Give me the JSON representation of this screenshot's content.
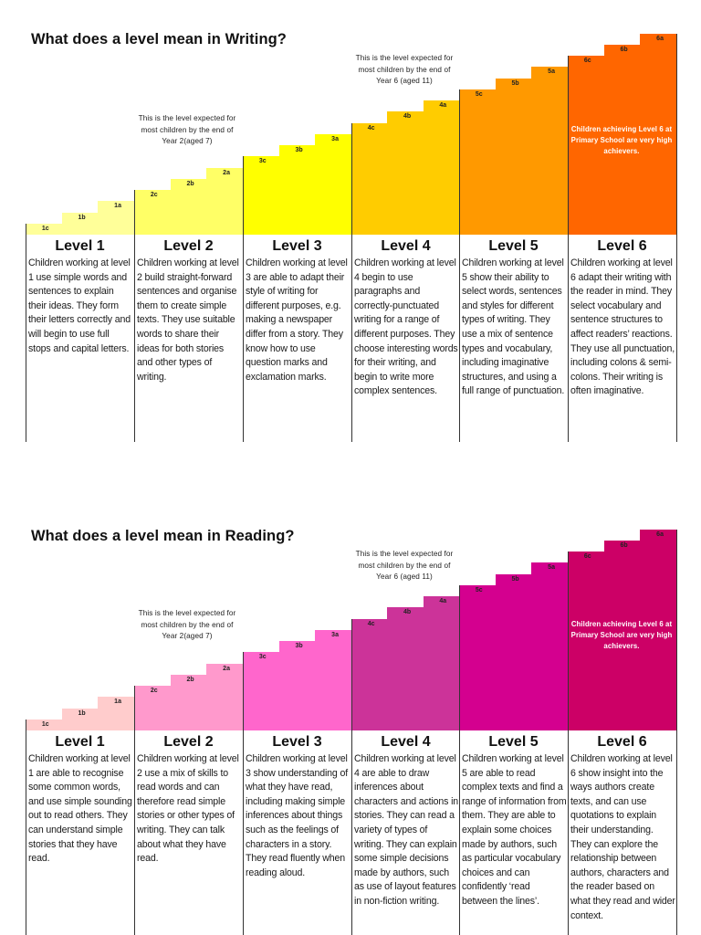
{
  "writing": {
    "title": "What does a level mean in Writing?",
    "note_year2": "This is the level expected for most children by the end of Year 2(aged 7)",
    "note_year6": "This is the level expected for most children by the end of Year 6 (aged 11)",
    "note_level6": "Children achieving Level 6 at Primary School are very high achievers.",
    "colors": [
      "#ffff99",
      "#ffff66",
      "#ffff00",
      "#ffcc00",
      "#ff9900",
      "#ff6600"
    ],
    "steps": [
      {
        "label": "1c"
      },
      {
        "label": "1b"
      },
      {
        "label": "1a"
      },
      {
        "label": "2c"
      },
      {
        "label": "2b"
      },
      {
        "label": "2a"
      },
      {
        "label": "3c"
      },
      {
        "label": "3b"
      },
      {
        "label": "3a"
      },
      {
        "label": "4c"
      },
      {
        "label": "4b"
      },
      {
        "label": "4a"
      },
      {
        "label": "5c"
      },
      {
        "label": "5b"
      },
      {
        "label": "5a"
      },
      {
        "label": "6c"
      },
      {
        "label": "6b"
      },
      {
        "label": "6a"
      }
    ],
    "levels": [
      {
        "heading": "Level 1",
        "text": "Children working at level 1 use simple words and sentences to explain their ideas. They form their letters correctly and will begin to use full stops and capital letters."
      },
      {
        "heading": "Level 2",
        "text": "Children working at level 2 build straight-forward sentences and organise them to create simple texts. They use suitable words to share their ideas for both stories and other types of writing."
      },
      {
        "heading": "Level 3",
        "text": "Children working at level 3 are able to adapt their style of writing for different purposes, e.g. making a newspaper differ from a story. They know how to use question marks and exclamation marks."
      },
      {
        "heading": "Level 4",
        "text": "Children working at level 4 begin to use paragraphs and correctly-punctuated writing for a range of different purposes. They choose interesting words for their writing, and begin to write more complex sentences."
      },
      {
        "heading": "Level 5",
        "text": "Children working at level 5 show their ability to select words, sentences and styles for different types of writing. They use a mix of sentence types and vocabulary, including imaginative structures, and using a full range of punctuation."
      },
      {
        "heading": "Level 6",
        "text": "Children working at level 6 adapt their writing with the reader in mind. They select vocabulary and sentence structures to affect readers’ reactions. They use all punctuation, including colons & semi-colons. Their writing is often imaginative."
      }
    ]
  },
  "reading": {
    "title": "What does a level mean in Reading?",
    "note_year2": "This is the level expected for most children by the end of Year 2(aged 7)",
    "note_year6": "This is the level expected for most children by the end of Year 6 (aged 11)",
    "note_level6": "Children achieving Level 6 at Primary School are very high achievers.",
    "colors": [
      "#ffcccc",
      "#ff99cc",
      "#ff66cc",
      "#cc3399",
      "#d4008f",
      "#cc0066"
    ],
    "steps": [
      {
        "label": "1c"
      },
      {
        "label": "1b"
      },
      {
        "label": "1a"
      },
      {
        "label": "2c"
      },
      {
        "label": "2b"
      },
      {
        "label": "2a"
      },
      {
        "label": "3c"
      },
      {
        "label": "3b"
      },
      {
        "label": "3a"
      },
      {
        "label": "4c"
      },
      {
        "label": "4b"
      },
      {
        "label": "4a"
      },
      {
        "label": "5c"
      },
      {
        "label": "5b"
      },
      {
        "label": "5a"
      },
      {
        "label": "6c"
      },
      {
        "label": "6b"
      },
      {
        "label": "6a"
      }
    ],
    "levels": [
      {
        "heading": "Level 1",
        "text": "Children working at level 1 are able to recognise some common words, and use simple sounding out to read others. They can understand simple stories that they have read."
      },
      {
        "heading": "Level 2",
        "text": "Children working at level 2 use a mix of skills to read words and can therefore read simple stories or other types of writing. They can talk about what they have read."
      },
      {
        "heading": "Level 3",
        "text": "Children working at level 3 show understanding of what they have read, including making simple inferences about things such as the feelings of characters in a story. They read fluently when reading aloud."
      },
      {
        "heading": "Level 4",
        "text": "Children working at level 4 are able to draw inferences about characters and actions in stories. They can read a variety of types of writing. They can explain some simple decisions made by authors, such as use of layout features in non-fiction writing."
      },
      {
        "heading": "Level 5",
        "text": "Children working at level 5 are able to read complex texts and find a range of information from them. They are able to explain some choices made by authors, such as particular vocabulary choices and can confidently ‘read between the lines’."
      },
      {
        "heading": "Level 6",
        "text": "Children working at level 6 show insight into the ways authors create texts, and can use quotations to explain their understanding. They can explore the relationship between authors, characters and the reader based on what they read and wider context."
      }
    ]
  }
}
